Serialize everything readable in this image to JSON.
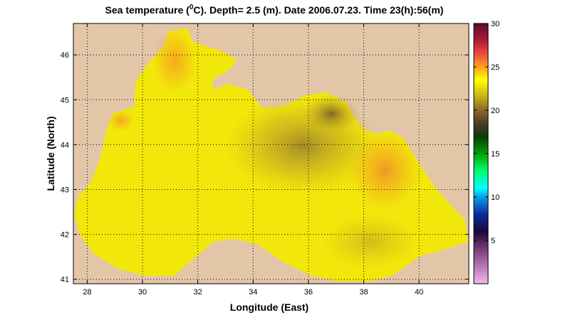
{
  "title": {
    "prefix": "Sea temperature (",
    "superscript": "0",
    "suffix": "C). Depth=  2.5 (m). Date 2006.07.23. Time 23(h):56(m)"
  },
  "map": {
    "xlabel": "Longitude (East)",
    "ylabel": "Latitude (North)",
    "xlim": [
      27.5,
      41.8
    ],
    "ylim": [
      40.9,
      46.7
    ],
    "xticks": [
      "28",
      "30",
      "32",
      "34",
      "36",
      "38",
      "40"
    ],
    "yticks": [
      "41",
      "42",
      "43",
      "44",
      "45",
      "46"
    ],
    "grid": "dotted",
    "land_color": "#e3c6a8",
    "sea_base_color": "#f2e70a"
  },
  "colorbar": {
    "range": [
      0,
      30
    ],
    "ticks": [
      "5",
      "10",
      "15",
      "20",
      "25",
      "30"
    ],
    "stops": [
      {
        "t": 0,
        "color": "#f2b7ec"
      },
      {
        "t": 4,
        "color": "#7a3a7a"
      },
      {
        "t": 6,
        "color": "#1a0a3a"
      },
      {
        "t": 8,
        "color": "#0a2aa0"
      },
      {
        "t": 10,
        "color": "#0aa0e6"
      },
      {
        "t": 11,
        "color": "#00ffff"
      },
      {
        "t": 13,
        "color": "#00ff70"
      },
      {
        "t": 15,
        "color": "#00a000"
      },
      {
        "t": 17,
        "color": "#0a3a0a"
      },
      {
        "t": 18.5,
        "color": "#503a28"
      },
      {
        "t": 20,
        "color": "#8a6a28"
      },
      {
        "t": 22,
        "color": "#d6c412"
      },
      {
        "t": 23.5,
        "color": "#ffff00"
      },
      {
        "t": 25,
        "color": "#ffa020"
      },
      {
        "t": 26.5,
        "color": "#f04a3a"
      },
      {
        "t": 28,
        "color": "#b01a3a"
      },
      {
        "t": 30,
        "color": "#5a0a2a"
      }
    ]
  }
}
